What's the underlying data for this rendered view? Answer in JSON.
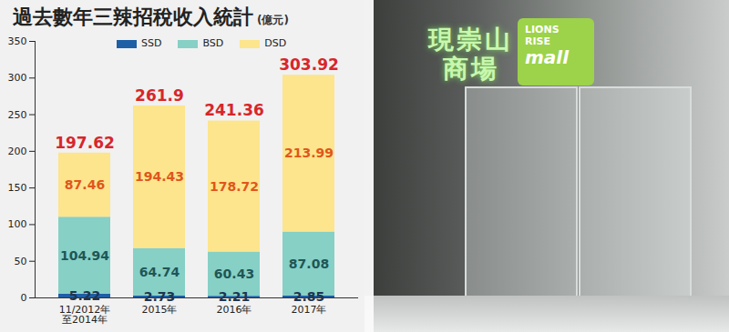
{
  "chart_data": {
    "type": "bar",
    "stacked": true,
    "title": "過去數年三辣招稅收入統計",
    "subtitle": "(億元)",
    "categories": [
      "11/2012年\n至2014年",
      "2015年",
      "2016年",
      "2017年"
    ],
    "series": [
      {
        "name": "SSD",
        "color": "#1f5fa6",
        "values": [
          5.22,
          2.73,
          2.21,
          2.85
        ]
      },
      {
        "name": "BSD",
        "color": "#86d0c6",
        "values": [
          104.94,
          64.74,
          60.43,
          87.08
        ]
      },
      {
        "name": "DSD",
        "color": "#fce58d",
        "values": [
          87.46,
          194.43,
          178.72,
          213.99
        ]
      }
    ],
    "totals": [
      197.62,
      261.9,
      241.36,
      303.92
    ],
    "ylim": [
      0,
      350
    ],
    "yticks": [
      0,
      50,
      100,
      150,
      200,
      250,
      300,
      350
    ],
    "grid": false,
    "legend": "top",
    "data_labels": true
  },
  "photo": {
    "sign": [
      "現崇山",
      "商場"
    ],
    "logo": [
      "LIONS",
      "RISE",
      "mall"
    ]
  }
}
